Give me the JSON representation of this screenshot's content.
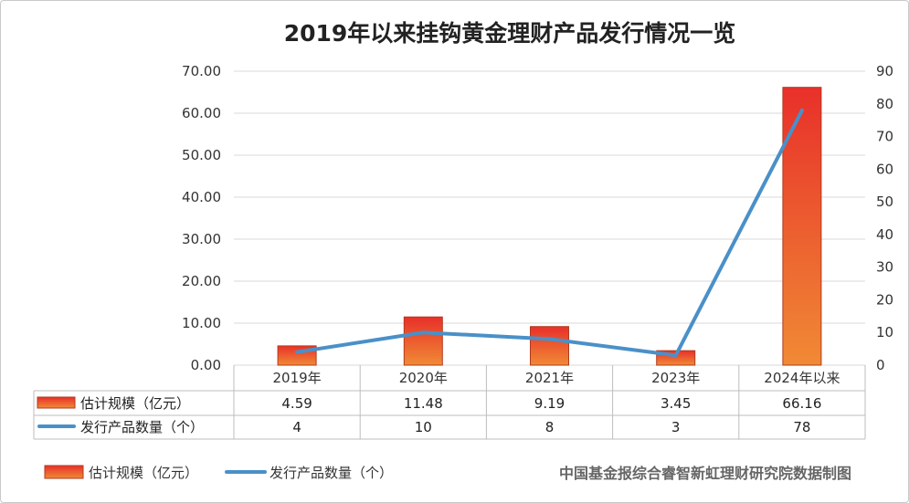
{
  "chart_data": {
    "type": "bar",
    "title": "2019年以来挂钩黄金理财产品发行情况一览",
    "categories": [
      "2019年",
      "2020年",
      "2021年",
      "2023年",
      "2024年以来"
    ],
    "series": [
      {
        "name": "估计规模（亿元）",
        "type": "bar",
        "axis": "left",
        "values": [
          4.59,
          11.48,
          9.19,
          3.45,
          66.16
        ],
        "labels": [
          "4.59",
          "11.48",
          "9.19",
          "3.45",
          "66.16"
        ]
      },
      {
        "name": "发行产品数量（个）",
        "type": "line",
        "axis": "right",
        "values": [
          4,
          10,
          8,
          3,
          78
        ],
        "labels": [
          "4",
          "10",
          "8",
          "3",
          "78"
        ]
      }
    ],
    "left_axis": {
      "min": 0,
      "max": 70,
      "step": 10,
      "tick_labels": [
        "0.00",
        "10.00",
        "20.00",
        "30.00",
        "40.00",
        "50.00",
        "60.00",
        "70.00"
      ]
    },
    "right_axis": {
      "min": 0,
      "max": 90,
      "step": 10,
      "tick_labels": [
        "0",
        "10",
        "20",
        "30",
        "40",
        "50",
        "60",
        "70",
        "80",
        "90"
      ]
    },
    "grid": true,
    "data_table": true,
    "legend_position": "bottom-left"
  },
  "source_note": "中国基金报综合睿智新虹理财研究院数据制图",
  "colors": {
    "bar_top": "#e8302a",
    "bar_bottom": "#f08a35",
    "bar_stroke": "#b23a1e",
    "line": "#4a90c8",
    "grid": "#d9d9d9"
  }
}
